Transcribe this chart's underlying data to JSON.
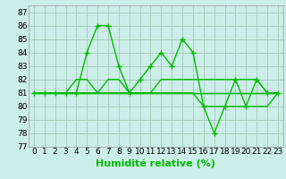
{
  "xlabel": "Humidité relative (%)",
  "bg_color": "#cceee8",
  "grid_color": "#aaccbb",
  "line_color": "#00bb00",
  "xlim": [
    -0.5,
    23.5
  ],
  "ylim": [
    77,
    87.5
  ],
  "yticks": [
    77,
    78,
    79,
    80,
    81,
    82,
    83,
    84,
    85,
    86,
    87
  ],
  "xticks": [
    0,
    1,
    2,
    3,
    4,
    5,
    6,
    7,
    8,
    9,
    10,
    11,
    12,
    13,
    14,
    15,
    16,
    17,
    18,
    19,
    20,
    21,
    22,
    23
  ],
  "series": [
    [
      81,
      81,
      81,
      81,
      81,
      84,
      86,
      86,
      83,
      81,
      82,
      83,
      84,
      83,
      85,
      84,
      80,
      78,
      80,
      82,
      80,
      82,
      81,
      81
    ],
    [
      81,
      81,
      81,
      81,
      81,
      81,
      81,
      81,
      81,
      81,
      81,
      81,
      81,
      81,
      81,
      81,
      81,
      81,
      81,
      81,
      81,
      81,
      81,
      81
    ],
    [
      81,
      81,
      81,
      81,
      82,
      82,
      81,
      82,
      82,
      81,
      81,
      81,
      82,
      82,
      82,
      82,
      82,
      82,
      82,
      82,
      82,
      82,
      81,
      81
    ],
    [
      81,
      81,
      81,
      81,
      81,
      81,
      81,
      81,
      81,
      81,
      81,
      81,
      81,
      81,
      81,
      81,
      80,
      80,
      80,
      80,
      80,
      80,
      80,
      81
    ],
    [
      81,
      81,
      81,
      81,
      81,
      81,
      81,
      81,
      81,
      81,
      81,
      81,
      81,
      81,
      81,
      81,
      81,
      81,
      81,
      81,
      81,
      81,
      81,
      81
    ]
  ],
  "marker": "+",
  "markersize": 4,
  "linewidth": 1.0,
  "xlabel_fontsize": 8,
  "tick_fontsize": 6.5
}
